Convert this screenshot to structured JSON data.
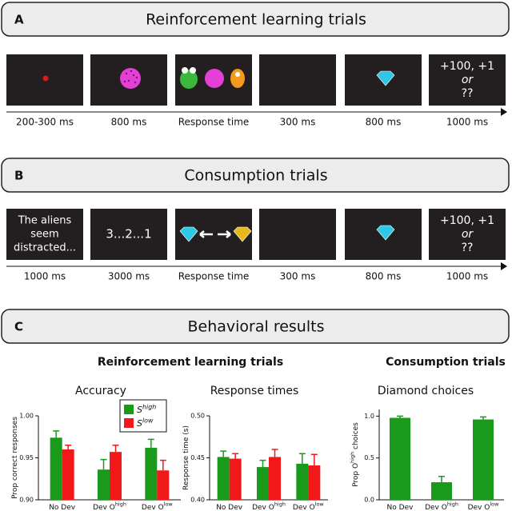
{
  "panel_a": {
    "letter": "A",
    "title": "Reinforcement learning trials",
    "final_screen": [
      "+100, +1",
      "or",
      "??"
    ],
    "durations": [
      "200-300 ms",
      "800 ms",
      "Response time",
      "300 ms",
      "800 ms",
      "1000 ms"
    ]
  },
  "panel_b": {
    "letter": "B",
    "title": "Consumption trials",
    "first_screen": [
      "The aliens",
      "seem",
      "distracted..."
    ],
    "countdown": "3...2...1",
    "final_screen": [
      "+100, +1",
      "or",
      "??"
    ],
    "durations": [
      "1000 ms",
      "3000 ms",
      "Response time",
      "300 ms",
      "800 ms",
      "1000 ms"
    ]
  },
  "panel_c": {
    "letter": "C",
    "title": "Behavioral results",
    "group_titles": [
      "Reinforcement learning trials",
      "Consumption trials"
    ]
  },
  "chart_data": [
    {
      "type": "bar",
      "title": "Accuracy",
      "y_label": {
        "text": "Prop correct responses"
      },
      "categories": [
        {
          "text": "No Dev"
        },
        {
          "text": "Dev O",
          "sup": "high"
        },
        {
          "text": "Dev O",
          "sup": "low"
        }
      ],
      "series": [
        {
          "name": {
            "text": "S",
            "sup": "high"
          },
          "color": "#1a9a1a",
          "values": [
            0.974,
            0.936,
            0.962
          ],
          "errors": [
            0.008,
            0.012,
            0.01
          ]
        },
        {
          "name": {
            "text": "S",
            "sup": "low"
          },
          "color": "#f01818",
          "values": [
            0.96,
            0.957,
            0.935
          ],
          "errors": [
            0.005,
            0.008,
            0.012
          ]
        }
      ],
      "ylim": [
        0.9,
        1.0
      ],
      "yticks": [
        {
          "value": 0.9,
          "label": "0.90"
        },
        0.95,
        {
          "value": 1.0,
          "label": "1.00"
        }
      ],
      "legend": "upper right"
    },
    {
      "type": "bar",
      "title": "Response times",
      "y_label": {
        "text": "Response time (s)"
      },
      "categories": [
        {
          "text": "No Dev"
        },
        {
          "text": "Dev O",
          "sup": "high"
        },
        {
          "text": "Dev O",
          "sup": "low"
        }
      ],
      "series": [
        {
          "color": "#1a9a1a",
          "values": [
            0.451,
            0.439,
            0.443
          ],
          "errors": [
            0.007,
            0.008,
            0.012
          ]
        },
        {
          "color": "#f01818",
          "values": [
            0.449,
            0.451,
            0.441
          ],
          "errors": [
            0.006,
            0.009,
            0.013
          ]
        }
      ],
      "ylim": [
        0.4,
        0.5
      ],
      "yticks": [
        {
          "value": 0.4,
          "label": "0.40"
        },
        0.45,
        {
          "value": 0.5,
          "label": "0.50"
        }
      ]
    },
    {
      "type": "bar",
      "title": "Diamond choices",
      "y_label": {
        "text": "Prop O",
        "sup": "high",
        "after": " choices"
      },
      "categories": [
        {
          "text": "No Dev"
        },
        {
          "text": "Dev O",
          "sup": "high"
        },
        {
          "text": "Dev O",
          "sup": "low"
        }
      ],
      "series": [
        {
          "color": "#1a9a1a",
          "values": [
            0.98,
            0.21,
            0.96
          ],
          "errors": [
            0.02,
            0.07,
            0.03
          ]
        }
      ],
      "ylim": [
        0,
        1.08
      ],
      "yticks": [
        {
          "value": 0,
          "label": "0.0"
        },
        0.5,
        {
          "value": 1.0,
          "label": "1.0"
        }
      ]
    }
  ]
}
